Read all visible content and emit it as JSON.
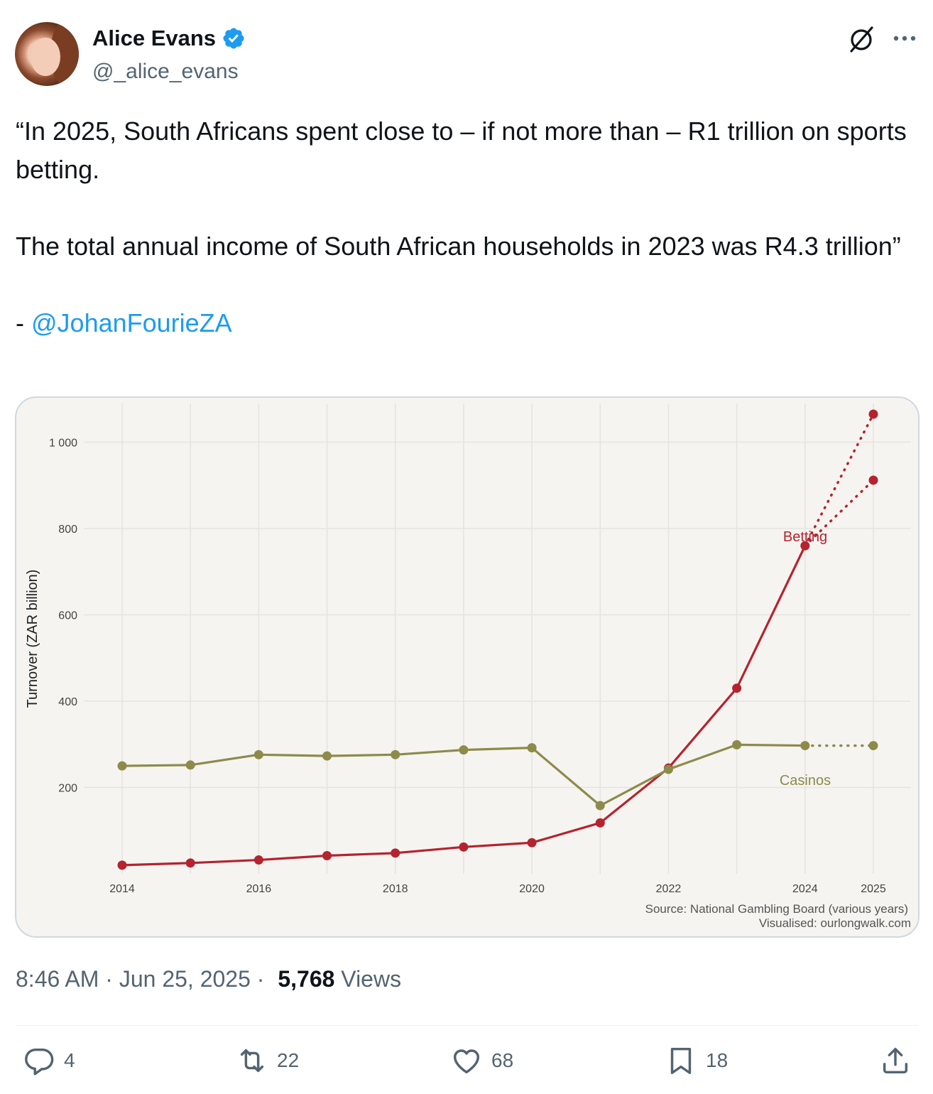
{
  "author": {
    "name": "Alice Evans",
    "handle": "@_alice_evans",
    "verified_color": "#1d9bf0"
  },
  "tweet": {
    "line1": "“In 2025, South Africans spent close to – if not more than – R1 trillion on sports betting.",
    "line2": "The total annual income of South African households in 2023 was R4.3 trillion”",
    "attribution_prefix": "- ",
    "mention": "@JohanFourieZA"
  },
  "meta": {
    "time_date": "8:46 AM · Jun 25, 2025 · ",
    "views_count": "5,768",
    "views_label": "Views"
  },
  "actions": {
    "replies": "4",
    "reposts": "22",
    "likes": "68",
    "bookmarks": "18"
  },
  "icons": {
    "reply": "reply-icon",
    "repost": "repost-icon",
    "like": "heart-icon",
    "bookmark": "bookmark-icon",
    "share": "share-icon",
    "grok": "grok-icon",
    "more": "more-icon"
  },
  "chart_data": {
    "type": "line",
    "ylabel": "Turnover (ZAR billion)",
    "xlabel": "",
    "x_ticks": [
      2014,
      2016,
      2018,
      2020,
      2022,
      2024,
      2025
    ],
    "y_ticks": [
      200,
      400,
      600,
      800,
      1000
    ],
    "y_tick_labels": [
      "200",
      "400",
      "600",
      "800",
      "1 000"
    ],
    "xlim": [
      2014,
      2025
    ],
    "ylim": [
      0,
      1100
    ],
    "grid": true,
    "series": [
      {
        "name": "Betting",
        "color": "#b5232f",
        "x": [
          2014,
          2015,
          2016,
          2017,
          2018,
          2019,
          2020,
          2021,
          2022,
          2023,
          2024
        ],
        "values": [
          20,
          25,
          32,
          42,
          48,
          62,
          72,
          118,
          245,
          430,
          760
        ],
        "projection": {
          "x": [
            2024,
            2025
          ],
          "high": [
            760,
            1065
          ],
          "low": [
            760,
            912
          ]
        }
      },
      {
        "name": "Casinos",
        "color": "#8e8a4a",
        "x": [
          2014,
          2015,
          2016,
          2017,
          2018,
          2019,
          2020,
          2021,
          2022,
          2023,
          2024
        ],
        "values": [
          250,
          252,
          276,
          273,
          276,
          287,
          292,
          158,
          242,
          299,
          297
        ],
        "projection": {
          "x": [
            2024,
            2025
          ],
          "values": [
            297,
            297
          ]
        }
      }
    ],
    "source_note": "Source: National Gambling Board (various years)",
    "visualised_note": "Visualised: ourlongwalk.com"
  }
}
